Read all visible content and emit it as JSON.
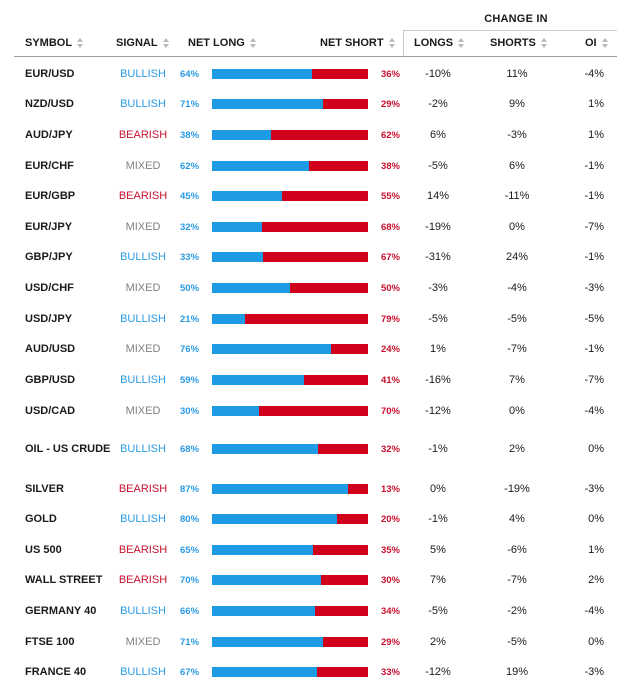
{
  "header": {
    "group": "CHANGE IN",
    "symbol": "SYMBOL",
    "signal": "SIGNAL",
    "net_long": "NET LONG",
    "net_short": "NET SHORT",
    "longs": "LONGS",
    "shorts": "SHORTS",
    "oi": "OI"
  },
  "colors": {
    "bullish": "#2b9be3",
    "bearish": "#c8102e",
    "mixed": "#808080",
    "long_bar": "#1e9be5",
    "short_bar": "#d0021b"
  },
  "rows": [
    {
      "symbol": "EUR/USD",
      "signal": "BULLISH",
      "net_long": "64%",
      "net_long_value": 64,
      "net_short": "36%",
      "longs": "-10%",
      "shorts": "11%",
      "oi": "-4%"
    },
    {
      "symbol": "NZD/USD",
      "signal": "BULLISH",
      "net_long": "71%",
      "net_long_value": 71,
      "net_short": "29%",
      "longs": "-2%",
      "shorts": "9%",
      "oi": "1%"
    },
    {
      "symbol": "AUD/JPY",
      "signal": "BEARISH",
      "net_long": "38%",
      "net_long_value": 38,
      "net_short": "62%",
      "longs": "6%",
      "shorts": "-3%",
      "oi": "1%"
    },
    {
      "symbol": "EUR/CHF",
      "signal": "MIXED",
      "net_long": "62%",
      "net_long_value": 62,
      "net_short": "38%",
      "longs": "-5%",
      "shorts": "6%",
      "oi": "-1%"
    },
    {
      "symbol": "EUR/GBP",
      "signal": "BEARISH",
      "net_long": "45%",
      "net_long_value": 45,
      "net_short": "55%",
      "longs": "14%",
      "shorts": "-11%",
      "oi": "-1%"
    },
    {
      "symbol": "EUR/JPY",
      "signal": "MIXED",
      "net_long": "32%",
      "net_long_value": 32,
      "net_short": "68%",
      "longs": "-19%",
      "shorts": "0%",
      "oi": "-7%"
    },
    {
      "symbol": "GBP/JPY",
      "signal": "BULLISH",
      "net_long": "33%",
      "net_long_value": 33,
      "net_short": "67%",
      "longs": "-31%",
      "shorts": "24%",
      "oi": "-1%"
    },
    {
      "symbol": "USD/CHF",
      "signal": "MIXED",
      "net_long": "50%",
      "net_long_value": 50,
      "net_short": "50%",
      "longs": "-3%",
      "shorts": "-4%",
      "oi": "-3%"
    },
    {
      "symbol": "USD/JPY",
      "signal": "BULLISH",
      "net_long": "21%",
      "net_long_value": 21,
      "net_short": "79%",
      "longs": "-5%",
      "shorts": "-5%",
      "oi": "-5%"
    },
    {
      "symbol": "AUD/USD",
      "signal": "MIXED",
      "net_long": "76%",
      "net_long_value": 76,
      "net_short": "24%",
      "longs": "1%",
      "shorts": "-7%",
      "oi": "-1%"
    },
    {
      "symbol": "GBP/USD",
      "signal": "BULLISH",
      "net_long": "59%",
      "net_long_value": 59,
      "net_short": "41%",
      "longs": "-16%",
      "shorts": "7%",
      "oi": "-7%"
    },
    {
      "symbol": "USD/CAD",
      "signal": "MIXED",
      "net_long": "30%",
      "net_long_value": 30,
      "net_short": "70%",
      "longs": "-12%",
      "shorts": "0%",
      "oi": "-4%"
    },
    {
      "symbol": "OIL - US CRUDE",
      "signal": "BULLISH",
      "net_long": "68%",
      "net_long_value": 68,
      "net_short": "32%",
      "longs": "-1%",
      "shorts": "2%",
      "oi": "0%"
    },
    {
      "symbol": "SILVER",
      "signal": "BEARISH",
      "net_long": "87%",
      "net_long_value": 87,
      "net_short": "13%",
      "longs": "0%",
      "shorts": "-19%",
      "oi": "-3%"
    },
    {
      "symbol": "GOLD",
      "signal": "BULLISH",
      "net_long": "80%",
      "net_long_value": 80,
      "net_short": "20%",
      "longs": "-1%",
      "shorts": "4%",
      "oi": "0%"
    },
    {
      "symbol": "US 500",
      "signal": "BEARISH",
      "net_long": "65%",
      "net_long_value": 65,
      "net_short": "35%",
      "longs": "5%",
      "shorts": "-6%",
      "oi": "1%"
    },
    {
      "symbol": "WALL STREET",
      "signal": "BEARISH",
      "net_long": "70%",
      "net_long_value": 70,
      "net_short": "30%",
      "longs": "7%",
      "shorts": "-7%",
      "oi": "2%"
    },
    {
      "symbol": "GERMANY 40",
      "signal": "BULLISH",
      "net_long": "66%",
      "net_long_value": 66,
      "net_short": "34%",
      "longs": "-5%",
      "shorts": "-2%",
      "oi": "-4%"
    },
    {
      "symbol": "FTSE 100",
      "signal": "MIXED",
      "net_long": "71%",
      "net_long_value": 71,
      "net_short": "29%",
      "longs": "2%",
      "shorts": "-5%",
      "oi": "0%"
    },
    {
      "symbol": "FRANCE 40",
      "signal": "BULLISH",
      "net_long": "67%",
      "net_long_value": 67,
      "net_short": "33%",
      "longs": "-12%",
      "shorts": "19%",
      "oi": "-3%"
    }
  ]
}
